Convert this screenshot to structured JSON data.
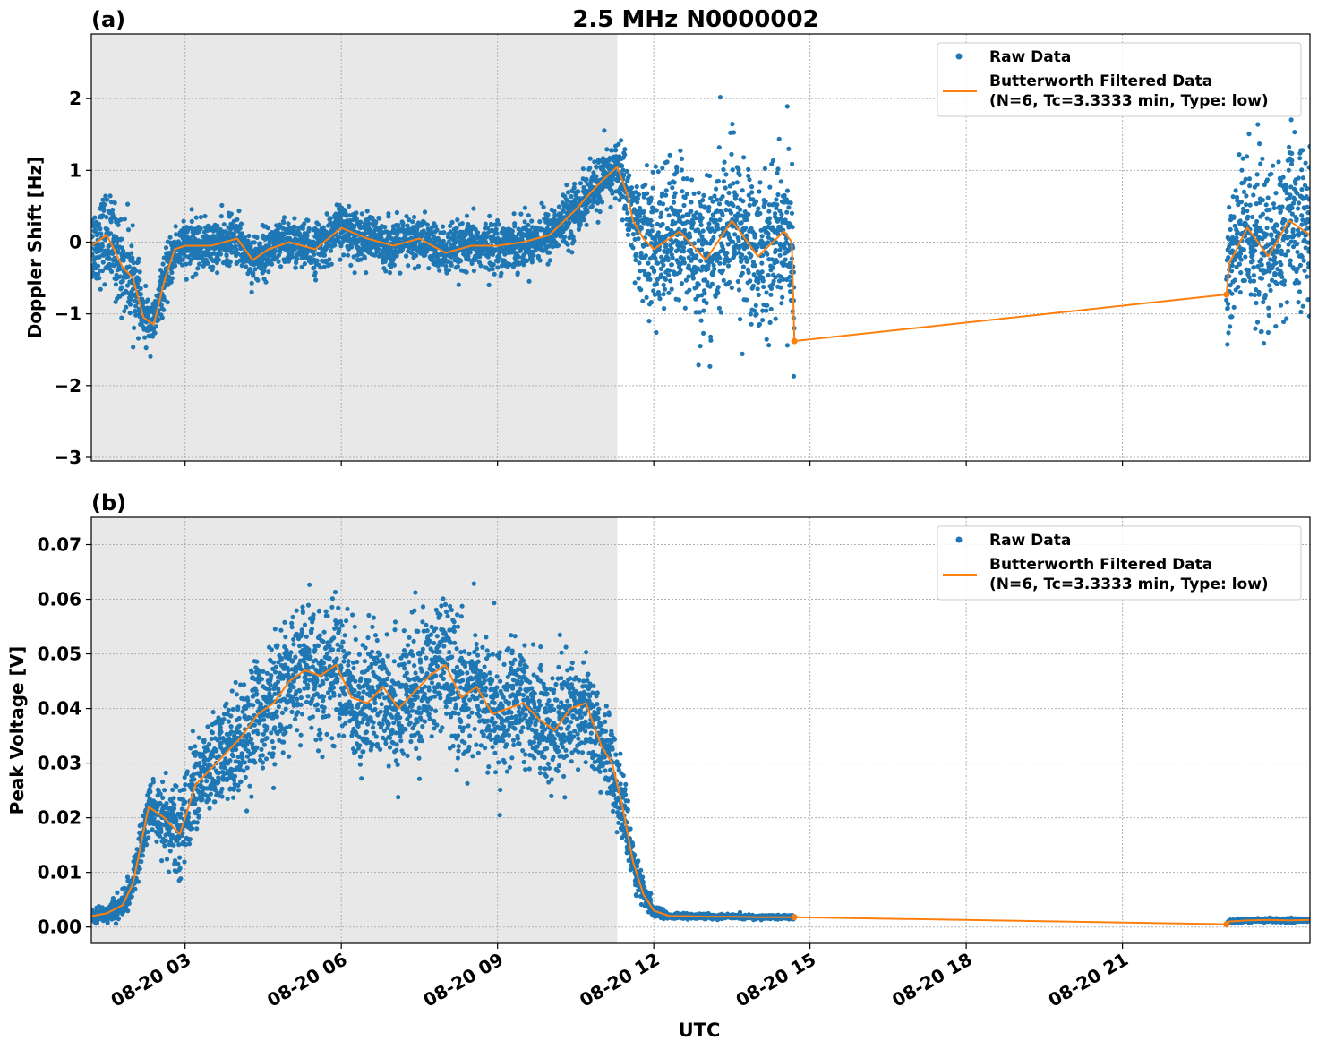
{
  "figure": {
    "title": "2.5 MHz N0000002",
    "xlabel": "UTC"
  },
  "chart_data": [
    {
      "type": "scatter",
      "panel_label": "(a)",
      "title": "2.5 MHz N0000002",
      "xlabel": "",
      "ylabel": "Doppler Shift [Hz]",
      "xlim": [
        1.2,
        24.6
      ],
      "ylim": [
        -3.05,
        2.9
      ],
      "x_unit": "hours UTC on 08-20",
      "x_ticks": [
        3,
        6,
        9,
        12,
        15,
        18,
        21
      ],
      "x_tick_labels": [
        "08-20 03",
        "08-20 06",
        "08-20 09",
        "08-20 12",
        "08-20 15",
        "08-20 18",
        "08-20 21"
      ],
      "y_ticks": [
        -3,
        -2,
        -1,
        0,
        1,
        2
      ],
      "y_tick_labels": [
        "−3",
        "−2",
        "−1",
        "0",
        "1",
        "2"
      ],
      "grid": true,
      "shaded_region": [
        1.2,
        11.3
      ],
      "legend": {
        "placement": "top-right",
        "entries": [
          "Raw Data",
          "Butterworth Filtered Data",
          "(N=6, Tc=3.3333 min, Type: low)"
        ]
      },
      "series": [
        {
          "name": "Raw Data",
          "style": "points",
          "color": "#1f77b4",
          "segments": [
            {
              "start": 1.2,
              "end": 14.7,
              "spread": 0.35
            },
            {
              "start": 23.0,
              "end": 24.6,
              "spread": 0.9
            }
          ],
          "spread_profile": [
            [
              1.2,
              0.5
            ],
            [
              1.9,
              0.6
            ],
            [
              2.2,
              0.3
            ],
            [
              9.4,
              0.3
            ],
            [
              11.3,
              0.35
            ],
            [
              11.7,
              0.7
            ],
            [
              12.1,
              0.9
            ],
            [
              14.7,
              1.0
            ],
            [
              23.0,
              1.0
            ],
            [
              24.6,
              1.0
            ]
          ]
        },
        {
          "name": "Butterworth Filtered Data (N=6, Tc=3.3333 min, Type: low)",
          "style": "line",
          "color": "#ff7f0e",
          "x": [
            1.2,
            1.5,
            1.8,
            2.0,
            2.2,
            2.4,
            2.6,
            2.8,
            3.0,
            3.5,
            4.0,
            4.3,
            4.6,
            5.0,
            5.5,
            6.0,
            6.5,
            7.0,
            7.5,
            8.0,
            8.5,
            9.0,
            9.5,
            10.0,
            10.5,
            10.8,
            11.0,
            11.3,
            11.5,
            11.6,
            11.8,
            12.0,
            12.5,
            13.0,
            13.5,
            14.0,
            14.5,
            14.65,
            14.7,
            23.0,
            23.05,
            23.4,
            23.8,
            24.2,
            24.6
          ],
          "y": [
            -0.05,
            0.1,
            -0.35,
            -0.5,
            -1.05,
            -1.15,
            -0.55,
            -0.1,
            -0.05,
            -0.05,
            0.05,
            -0.25,
            -0.1,
            0.0,
            -0.1,
            0.2,
            0.05,
            -0.05,
            0.05,
            -0.15,
            -0.05,
            -0.05,
            0.0,
            0.1,
            0.45,
            0.7,
            0.85,
            1.05,
            0.65,
            0.3,
            0.05,
            -0.1,
            0.15,
            -0.25,
            0.3,
            -0.2,
            0.15,
            0.0,
            -1.38,
            -0.73,
            -0.3,
            0.2,
            -0.2,
            0.3,
            0.1
          ]
        }
      ]
    },
    {
      "type": "scatter",
      "panel_label": "(b)",
      "title": "",
      "xlabel": "UTC",
      "ylabel": "Peak Voltage [V]",
      "xlim": [
        1.2,
        24.6
      ],
      "ylim": [
        -0.003,
        0.075
      ],
      "x_unit": "hours UTC on 08-20",
      "x_ticks": [
        3,
        6,
        9,
        12,
        15,
        18,
        21
      ],
      "x_tick_labels": [
        "08-20 03",
        "08-20 06",
        "08-20 09",
        "08-20 12",
        "08-20 15",
        "08-20 18",
        "08-20 21"
      ],
      "y_ticks": [
        0.0,
        0.01,
        0.02,
        0.03,
        0.04,
        0.05,
        0.06,
        0.07
      ],
      "y_tick_labels": [
        "0.00",
        "0.01",
        "0.02",
        "0.03",
        "0.04",
        "0.05",
        "0.06",
        "0.07"
      ],
      "grid": true,
      "shaded_region": [
        1.2,
        11.3
      ],
      "legend": {
        "placement": "top-right",
        "entries": [
          "Raw Data",
          "Butterworth Filtered Data",
          "(N=6, Tc=3.3333 min, Type: low)"
        ]
      },
      "series": [
        {
          "name": "Raw Data",
          "style": "points",
          "color": "#1f77b4",
          "segments": [
            {
              "start": 1.2,
              "end": 14.7
            },
            {
              "start": 23.0,
              "end": 24.6
            }
          ],
          "spread_profile": [
            [
              1.2,
              0.0008
            ],
            [
              2.0,
              0.0025
            ],
            [
              2.5,
              0.006
            ],
            [
              4.0,
              0.009
            ],
            [
              6.0,
              0.011
            ],
            [
              8.0,
              0.011
            ],
            [
              10.5,
              0.009
            ],
            [
              11.3,
              0.006
            ],
            [
              12.0,
              0.001
            ],
            [
              12.3,
              0.0004
            ],
            [
              14.7,
              0.0003
            ],
            [
              23.0,
              0.0003
            ],
            [
              24.6,
              0.0003
            ]
          ]
        },
        {
          "name": "Butterworth Filtered Data (N=6, Tc=3.3333 min, Type: low)",
          "style": "line",
          "color": "#ff7f0e",
          "x": [
            1.2,
            1.5,
            1.8,
            2.0,
            2.3,
            2.6,
            2.9,
            3.2,
            3.5,
            3.8,
            4.1,
            4.4,
            4.7,
            5.0,
            5.3,
            5.6,
            5.9,
            6.2,
            6.5,
            6.8,
            7.1,
            7.4,
            7.7,
            8.0,
            8.3,
            8.6,
            8.9,
            9.2,
            9.5,
            9.8,
            10.1,
            10.4,
            10.7,
            11.0,
            11.2,
            11.4,
            11.6,
            11.8,
            12.0,
            12.3,
            12.6,
            13.0,
            13.5,
            14.0,
            14.5,
            14.7,
            23.0,
            23.05,
            23.4,
            23.8,
            24.2,
            24.6
          ],
          "y": [
            0.002,
            0.0025,
            0.004,
            0.008,
            0.022,
            0.02,
            0.017,
            0.026,
            0.029,
            0.032,
            0.035,
            0.039,
            0.041,
            0.045,
            0.047,
            0.046,
            0.048,
            0.042,
            0.041,
            0.044,
            0.04,
            0.043,
            0.046,
            0.048,
            0.042,
            0.044,
            0.039,
            0.04,
            0.041,
            0.038,
            0.036,
            0.04,
            0.041,
            0.033,
            0.03,
            0.022,
            0.012,
            0.006,
            0.003,
            0.002,
            0.002,
            0.0019,
            0.0019,
            0.0018,
            0.0018,
            0.0018,
            0.0005,
            0.001,
            0.0012,
            0.0013,
            0.0012,
            0.0013
          ]
        }
      ]
    }
  ]
}
